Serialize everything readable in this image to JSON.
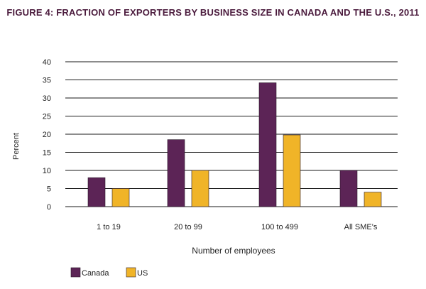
{
  "chart_data": {
    "type": "bar",
    "title": "FIGURE 4: FRACTION OF EXPORTERS BY BUSINESS SIZE IN CANADA AND THE U.S., 2011",
    "xlabel": "Number of employees",
    "ylabel": "Percent",
    "ylim": [
      0,
      40
    ],
    "yticks": [
      0,
      5,
      10,
      15,
      20,
      25,
      30,
      35,
      40
    ],
    "grid": true,
    "legend_position": "bottom-left",
    "categories": [
      "1 to 19",
      "20 to 99",
      "100 to 499",
      "All SME's"
    ],
    "series": [
      {
        "name": "Canada",
        "color": "#5c2456",
        "values": [
          8,
          18.5,
          34.2,
          10
        ]
      },
      {
        "name": "US",
        "color": "#f0b428",
        "values": [
          5,
          10,
          19.8,
          4
        ]
      }
    ]
  }
}
